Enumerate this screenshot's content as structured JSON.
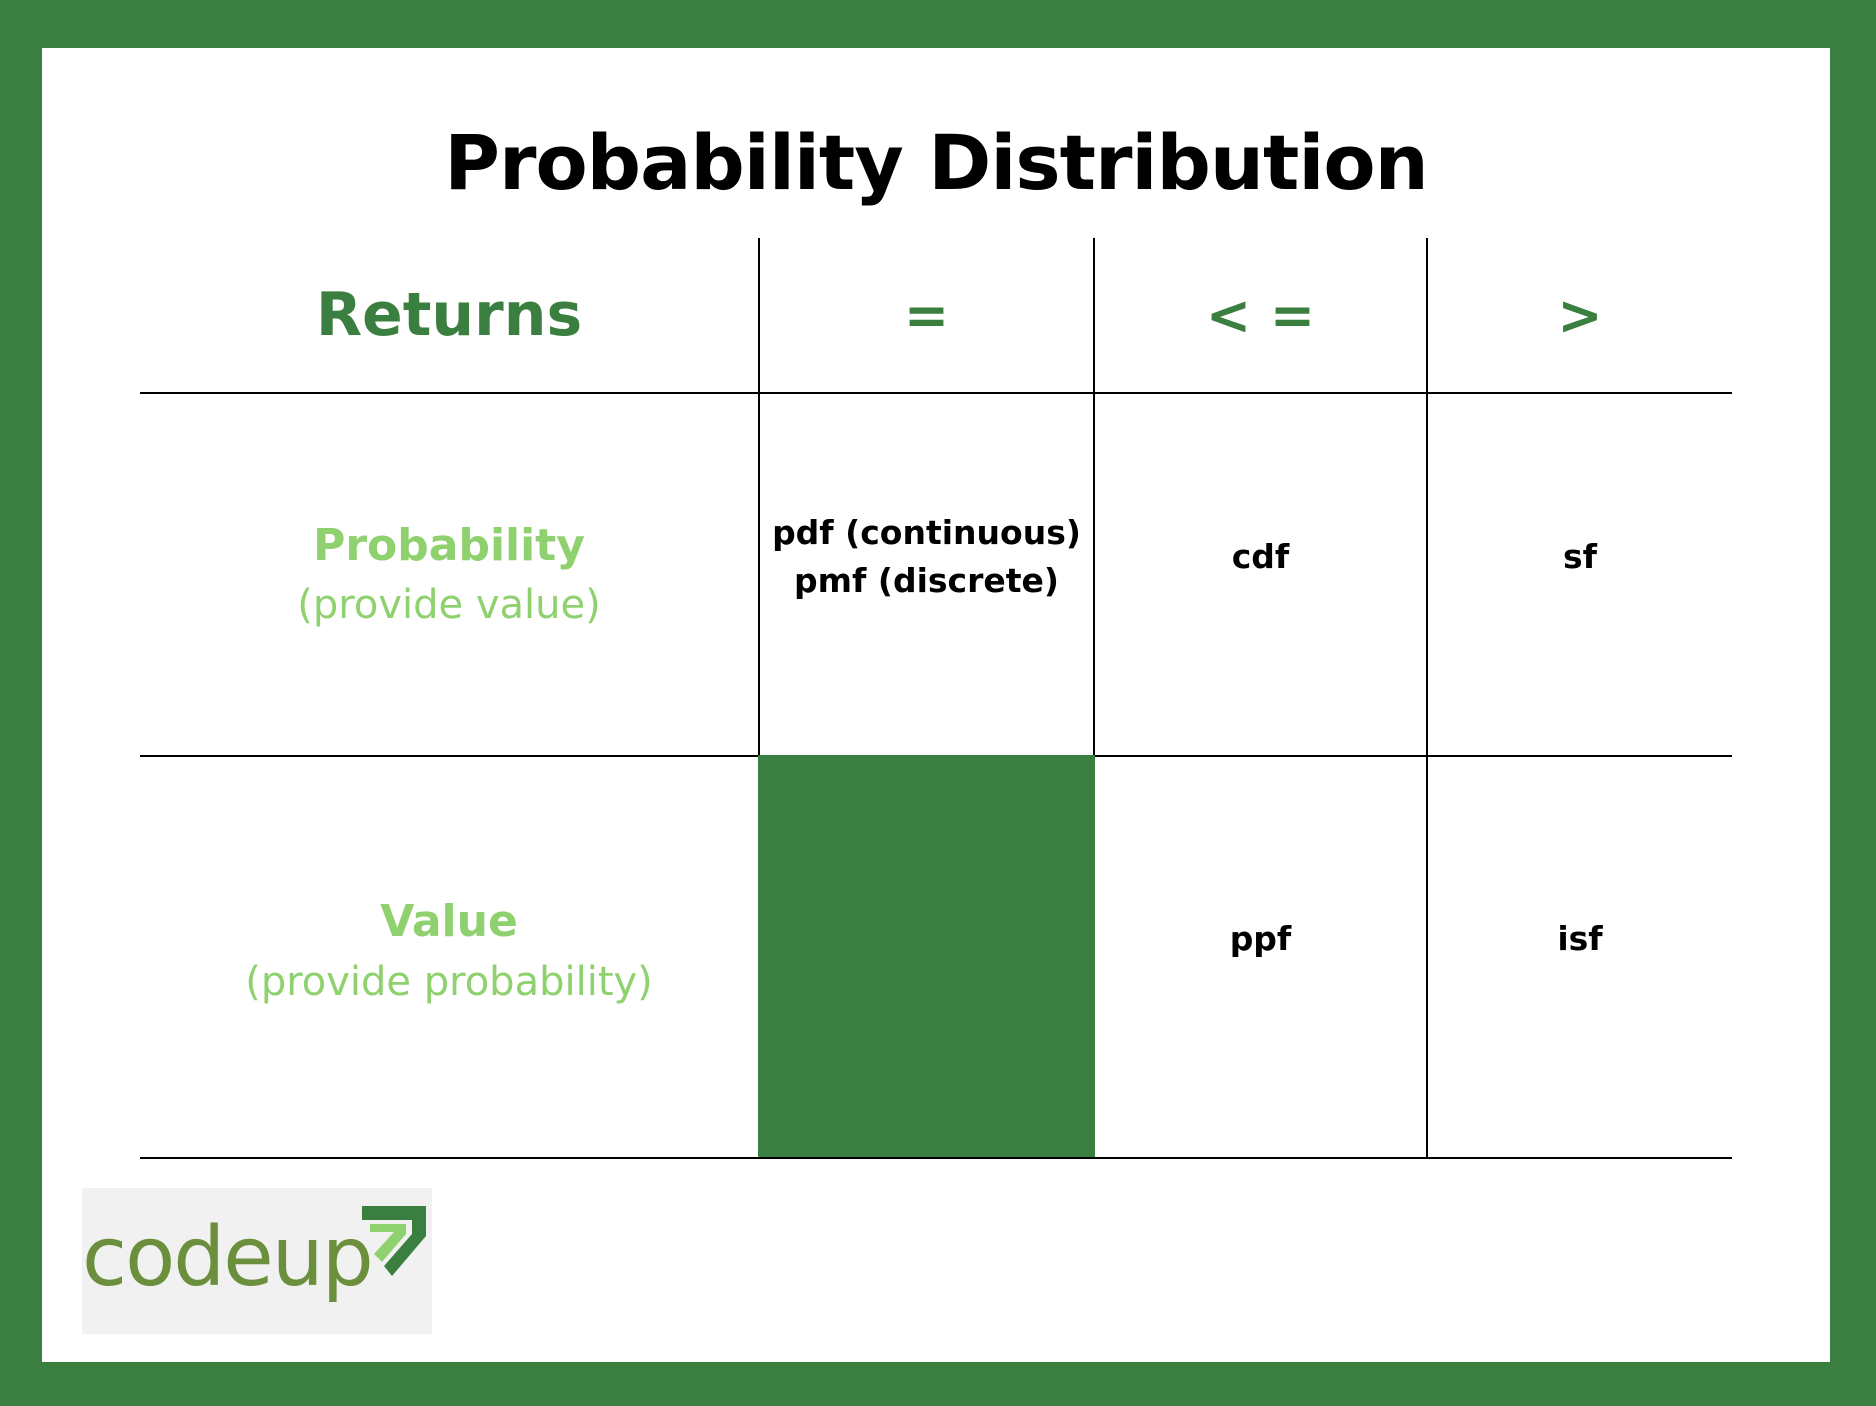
{
  "title": "Probability Distribution",
  "table": {
    "headers": [
      "Returns",
      "=",
      "< =",
      ">"
    ],
    "rows": [
      {
        "label": "Probability",
        "sublabel": "(provide value)",
        "eq": [
          "pdf (continuous)",
          "pmf (discrete)"
        ],
        "le": "cdf",
        "gt": "sf"
      },
      {
        "label": "Value",
        "sublabel": "(provide probability)",
        "eq": [],
        "le": "ppf",
        "gt": "isf"
      }
    ]
  },
  "logo": {
    "text": "codeup"
  },
  "colors": {
    "frame": "#3a7f40",
    "header_text": "#3a7f40",
    "row_label": "#8fd16f",
    "filled_cell": "#3a7f40",
    "logo_text": "#6b8f3c"
  }
}
